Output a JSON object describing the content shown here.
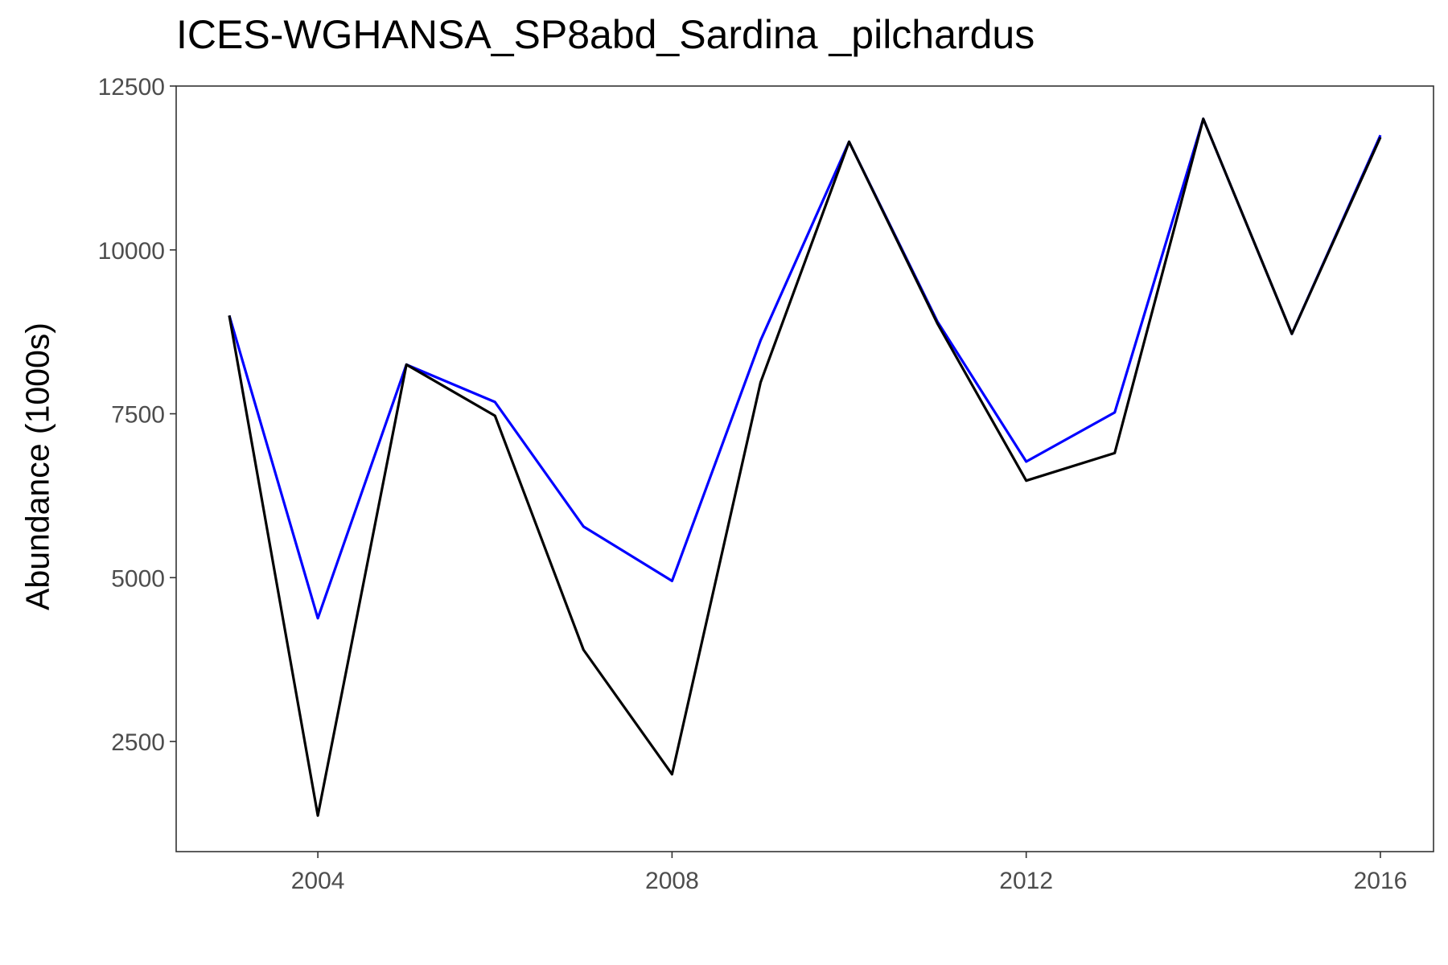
{
  "chart_data": {
    "type": "line",
    "title": "ICES-WGHANSA_SP8abd_Sardina _pilchardus",
    "xlabel": "",
    "ylabel": "Abundance (1000s)",
    "x": [
      2003,
      2004,
      2005,
      2006,
      2007,
      2008,
      2009,
      2010,
      2011,
      2012,
      2013,
      2014,
      2015,
      2016
    ],
    "series": [
      {
        "color": "#0000ff",
        "values": [
          9000,
          4380,
          8250,
          7680,
          5780,
          4950,
          8620,
          11650,
          8900,
          6770,
          7520,
          12000,
          8720,
          11750
        ]
      },
      {
        "color": "#000000",
        "values": [
          9000,
          1370,
          8250,
          7470,
          3900,
          2000,
          7980,
          11650,
          8870,
          6480,
          6900,
          12000,
          8720,
          11720
        ]
      }
    ],
    "xlim": [
      2002.4,
      2016.6
    ],
    "ylim": [
      820,
      12500
    ],
    "xticks": [
      2004,
      2008,
      2012,
      2016
    ],
    "yticks": [
      2500,
      5000,
      7500,
      10000,
      12500
    ],
    "grid": false,
    "legend": "none"
  }
}
